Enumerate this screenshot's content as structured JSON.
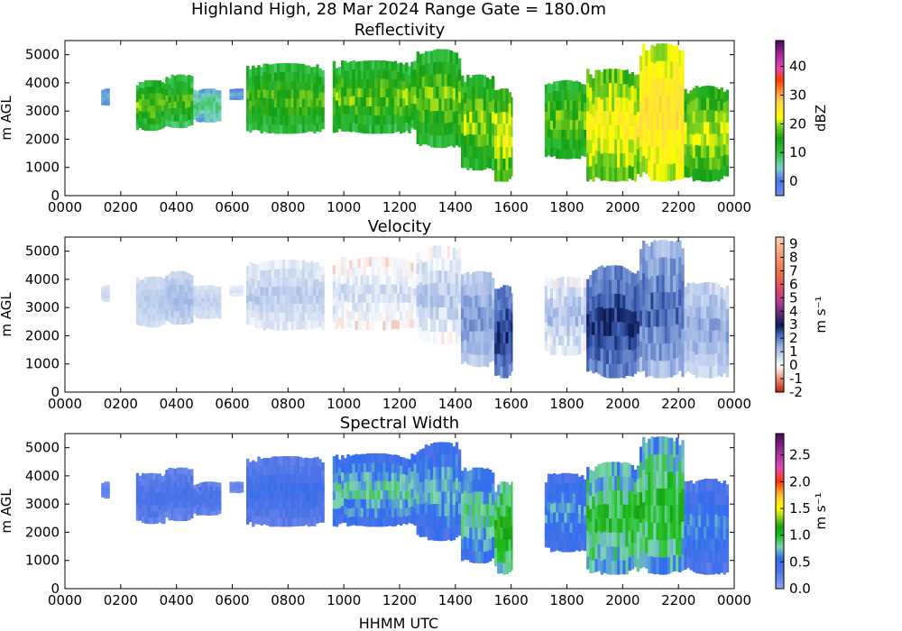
{
  "figure": {
    "title": "Highland High, 28 Mar 2024 Range Gate = 180.0m",
    "xlabel": "HHMM UTC"
  },
  "chart_data": [
    {
      "type": "heatmap",
      "title": "Reflectivity",
      "xlabel": "",
      "ylabel": "m AGL",
      "xlim": [
        0,
        2400
      ],
      "ylim": [
        0,
        5500
      ],
      "x_ticks": [
        "0000",
        "0200",
        "0400",
        "0600",
        "0800",
        "1000",
        "1200",
        "1400",
        "1600",
        "1800",
        "2000",
        "2200",
        "0000"
      ],
      "y_ticks": [
        "0",
        "1000",
        "2000",
        "3000",
        "4000",
        "5000"
      ],
      "colorbar": {
        "label": "dBZ",
        "range": [
          -5,
          49
        ],
        "ticks": [
          "0",
          "10",
          "20",
          "30",
          "40"
        ],
        "stops": [
          {
            "v": 0.0,
            "c": "#6f8df0"
          },
          {
            "v": 0.1,
            "c": "#4f73e6"
          },
          {
            "v": 0.18,
            "c": "#79d3c9"
          },
          {
            "v": 0.28,
            "c": "#33c040"
          },
          {
            "v": 0.37,
            "c": "#14a014"
          },
          {
            "v": 0.45,
            "c": "#7ed11f"
          },
          {
            "v": 0.5,
            "c": "#ffff00"
          },
          {
            "v": 0.6,
            "c": "#ffd84a"
          },
          {
            "v": 0.66,
            "c": "#ff9e45"
          },
          {
            "v": 0.75,
            "c": "#ff3a00"
          },
          {
            "v": 0.82,
            "c": "#e64aa8"
          },
          {
            "v": 0.9,
            "c": "#b02ca8"
          },
          {
            "v": 1.0,
            "c": "#4a0a55"
          }
        ]
      },
      "segments": [
        {
          "t0": 130,
          "t1": 160,
          "bot": 3200,
          "top": 3800,
          "v": 2,
          "dv": 2
        },
        {
          "t0": 255,
          "t1": 360,
          "bot": 2300,
          "top": 4100,
          "v": 14,
          "dv": 8
        },
        {
          "t0": 360,
          "t1": 460,
          "bot": 2400,
          "top": 4300,
          "v": 12,
          "dv": 8
        },
        {
          "t0": 460,
          "t1": 560,
          "bot": 2600,
          "top": 3800,
          "v": 5,
          "dv": 6
        },
        {
          "t0": 590,
          "t1": 640,
          "bot": 3400,
          "top": 3800,
          "v": 2,
          "dv": 2
        },
        {
          "t0": 650,
          "t1": 930,
          "bot": 2200,
          "top": 4700,
          "v": 13,
          "dv": 7
        },
        {
          "t0": 960,
          "t1": 1260,
          "bot": 2200,
          "top": 4800,
          "v": 14,
          "dv": 8
        },
        {
          "t0": 1260,
          "t1": 1420,
          "bot": 1700,
          "top": 5200,
          "v": 14,
          "dv": 8
        },
        {
          "t0": 1420,
          "t1": 1540,
          "bot": 900,
          "top": 4300,
          "v": 15,
          "dv": 8
        },
        {
          "t0": 1540,
          "t1": 1605,
          "bot": 500,
          "top": 3800,
          "v": 18,
          "dv": 8
        },
        {
          "t0": 1720,
          "t1": 1870,
          "bot": 1300,
          "top": 4100,
          "v": 14,
          "dv": 8
        },
        {
          "t0": 1870,
          "t1": 2060,
          "bot": 500,
          "top": 4500,
          "v": 20,
          "dv": 7
        },
        {
          "t0": 2060,
          "t1": 2220,
          "bot": 500,
          "top": 5400,
          "v": 23,
          "dv": 6
        },
        {
          "t0": 2220,
          "t1": 2380,
          "bot": 500,
          "top": 3900,
          "v": 17,
          "dv": 7
        }
      ]
    },
    {
      "type": "heatmap",
      "title": "Velocity",
      "xlabel": "",
      "ylabel": "m AGL",
      "xlim": [
        0,
        2400
      ],
      "ylim": [
        0,
        5500
      ],
      "x_ticks": [
        "0000",
        "0200",
        "0400",
        "0600",
        "0800",
        "1000",
        "1200",
        "1400",
        "1600",
        "1800",
        "2000",
        "2200",
        "0000"
      ],
      "y_ticks": [
        "0",
        "1000",
        "2000",
        "3000",
        "4000",
        "5000"
      ],
      "colorbar": {
        "label": "m s⁻¹",
        "range": [
          -2,
          9.5
        ],
        "ticks": [
          "-2",
          "-1",
          "0",
          "1",
          "2",
          "3",
          "4",
          "5",
          "6",
          "7",
          "8",
          "9"
        ],
        "stops": [
          {
            "v": 0.0,
            "c": "#c0200c"
          },
          {
            "v": 0.08,
            "c": "#e8806a"
          },
          {
            "v": 0.17,
            "c": "#ffffff"
          },
          {
            "v": 0.22,
            "c": "#d5e0f3"
          },
          {
            "v": 0.3,
            "c": "#93aee0"
          },
          {
            "v": 0.38,
            "c": "#3e5fb5"
          },
          {
            "v": 0.43,
            "c": "#0a1a55"
          },
          {
            "v": 0.5,
            "c": "#5a2a7a"
          },
          {
            "v": 0.58,
            "c": "#b04090"
          },
          {
            "v": 0.66,
            "c": "#d8486a"
          },
          {
            "v": 0.76,
            "c": "#ee6a48"
          },
          {
            "v": 0.88,
            "c": "#f59a70"
          },
          {
            "v": 1.0,
            "c": "#fbd0b8"
          }
        ]
      },
      "segments": [
        {
          "t0": 130,
          "t1": 160,
          "bot": 3200,
          "top": 3800,
          "v": 0.6,
          "dv": 0.3
        },
        {
          "t0": 255,
          "t1": 360,
          "bot": 2300,
          "top": 4100,
          "v": 0.7,
          "dv": 0.4
        },
        {
          "t0": 360,
          "t1": 460,
          "bot": 2400,
          "top": 4300,
          "v": 0.9,
          "dv": 0.5
        },
        {
          "t0": 460,
          "t1": 560,
          "bot": 2600,
          "top": 3800,
          "v": 0.6,
          "dv": 0.4
        },
        {
          "t0": 590,
          "t1": 640,
          "bot": 3400,
          "top": 3800,
          "v": 0.3,
          "dv": 0.3
        },
        {
          "t0": 650,
          "t1": 930,
          "bot": 2200,
          "top": 4700,
          "v": 0.5,
          "dv": 0.7
        },
        {
          "t0": 960,
          "t1": 1260,
          "bot": 2200,
          "top": 4800,
          "v": 0.1,
          "dv": 0.9
        },
        {
          "t0": 1260,
          "t1": 1420,
          "bot": 1700,
          "top": 5200,
          "v": 0.4,
          "dv": 1.0
        },
        {
          "t0": 1420,
          "t1": 1540,
          "bot": 900,
          "top": 4300,
          "v": 1.2,
          "dv": 0.9
        },
        {
          "t0": 1540,
          "t1": 1605,
          "bot": 500,
          "top": 3800,
          "v": 2.2,
          "dv": 1.0
        },
        {
          "t0": 1720,
          "t1": 1870,
          "bot": 1300,
          "top": 4100,
          "v": 0.5,
          "dv": 1.2
        },
        {
          "t0": 1870,
          "t1": 2060,
          "bot": 500,
          "top": 4500,
          "v": 2.2,
          "dv": 1.0
        },
        {
          "t0": 2060,
          "t1": 2220,
          "bot": 500,
          "top": 5400,
          "v": 1.6,
          "dv": 1.2
        },
        {
          "t0": 2220,
          "t1": 2380,
          "bot": 500,
          "top": 3900,
          "v": 1.0,
          "dv": 0.9
        }
      ]
    },
    {
      "type": "heatmap",
      "title": "Spectral Width",
      "xlabel": "HHMM UTC",
      "ylabel": "m AGL",
      "xlim": [
        0,
        2400
      ],
      "ylim": [
        0,
        5500
      ],
      "x_ticks": [
        "0000",
        "0200",
        "0400",
        "0600",
        "0800",
        "1000",
        "1200",
        "1400",
        "1600",
        "1800",
        "2000",
        "2200",
        "0000"
      ],
      "y_ticks": [
        "0",
        "1000",
        "2000",
        "3000",
        "4000",
        "5000"
      ],
      "colorbar": {
        "label": "m s⁻¹",
        "range": [
          0,
          2.9
        ],
        "ticks": [
          "0.0",
          "0.5",
          "1.0",
          "1.5",
          "2.0",
          "2.5"
        ],
        "stops": [
          {
            "v": 0.0,
            "c": "#8ea6f2"
          },
          {
            "v": 0.12,
            "c": "#4f73e6"
          },
          {
            "v": 0.2,
            "c": "#2f6df0"
          },
          {
            "v": 0.27,
            "c": "#7fd3b8"
          },
          {
            "v": 0.34,
            "c": "#22c022"
          },
          {
            "v": 0.4,
            "c": "#14a014"
          },
          {
            "v": 0.47,
            "c": "#a6d81f"
          },
          {
            "v": 0.52,
            "c": "#ffff00"
          },
          {
            "v": 0.6,
            "c": "#ffc43a"
          },
          {
            "v": 0.69,
            "c": "#ff3a00"
          },
          {
            "v": 0.78,
            "c": "#e04ab0"
          },
          {
            "v": 0.88,
            "c": "#a030a0"
          },
          {
            "v": 1.0,
            "c": "#4a0a55"
          }
        ]
      },
      "segments": [
        {
          "t0": 130,
          "t1": 160,
          "bot": 3200,
          "top": 3800,
          "v": 0.2,
          "dv": 0.1
        },
        {
          "t0": 255,
          "t1": 360,
          "bot": 2300,
          "top": 4100,
          "v": 0.3,
          "dv": 0.2
        },
        {
          "t0": 360,
          "t1": 460,
          "bot": 2400,
          "top": 4300,
          "v": 0.3,
          "dv": 0.2
        },
        {
          "t0": 460,
          "t1": 560,
          "bot": 2600,
          "top": 3800,
          "v": 0.3,
          "dv": 0.2
        },
        {
          "t0": 590,
          "t1": 640,
          "bot": 3400,
          "top": 3800,
          "v": 0.2,
          "dv": 0.1
        },
        {
          "t0": 650,
          "t1": 930,
          "bot": 2200,
          "top": 4700,
          "v": 0.35,
          "dv": 0.2
        },
        {
          "t0": 960,
          "t1": 1260,
          "bot": 2200,
          "top": 4800,
          "v": 0.6,
          "dv": 0.35
        },
        {
          "t0": 1260,
          "t1": 1420,
          "bot": 1700,
          "top": 5200,
          "v": 0.55,
          "dv": 0.35
        },
        {
          "t0": 1420,
          "t1": 1540,
          "bot": 900,
          "top": 4300,
          "v": 0.65,
          "dv": 0.35
        },
        {
          "t0": 1540,
          "t1": 1605,
          "bot": 500,
          "top": 3800,
          "v": 0.9,
          "dv": 0.4
        },
        {
          "t0": 1720,
          "t1": 1870,
          "bot": 1300,
          "top": 4100,
          "v": 0.5,
          "dv": 0.3
        },
        {
          "t0": 1870,
          "t1": 2060,
          "bot": 500,
          "top": 4500,
          "v": 0.8,
          "dv": 0.45
        },
        {
          "t0": 2060,
          "t1": 2220,
          "bot": 500,
          "top": 5400,
          "v": 0.8,
          "dv": 0.45
        },
        {
          "t0": 2220,
          "t1": 2380,
          "bot": 500,
          "top": 3900,
          "v": 0.45,
          "dv": 0.3
        }
      ]
    }
  ]
}
